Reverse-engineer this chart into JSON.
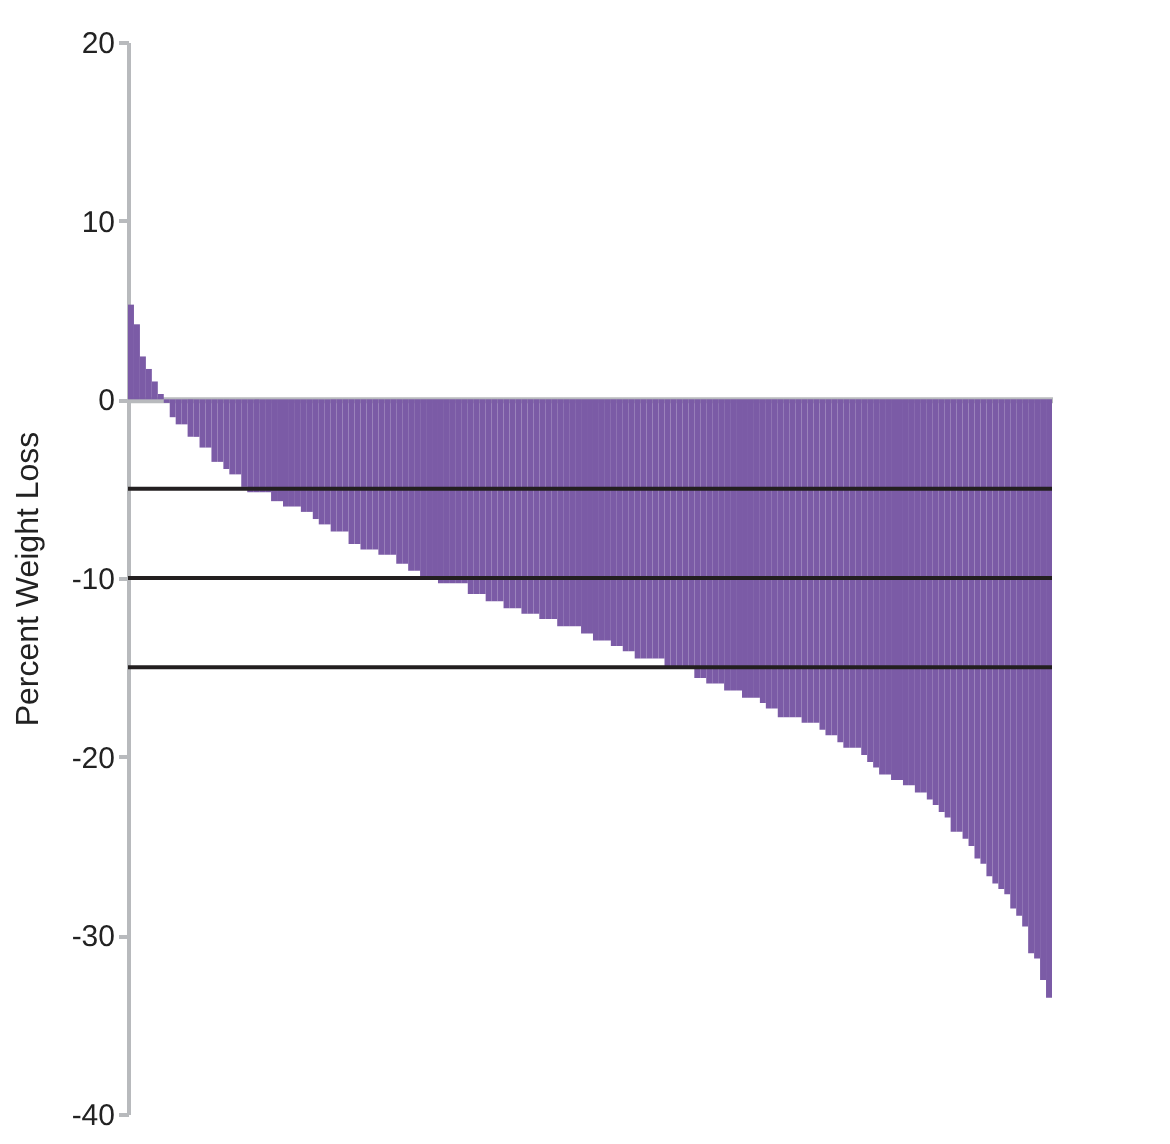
{
  "chart_data": {
    "type": "bar",
    "ylabel": "Percent Weight Loss",
    "categories": [
      null,
      null,
      null,
      null,
      null,
      null,
      null,
      null,
      null,
      null,
      null,
      null,
      null,
      null,
      null,
      null,
      null,
      null,
      null,
      null,
      null,
      null,
      null,
      null,
      null,
      null,
      null,
      null,
      null,
      null,
      null,
      null,
      null,
      null,
      null,
      null,
      null,
      null,
      null,
      null,
      null,
      null,
      null,
      null,
      null,
      null,
      null,
      null,
      null,
      null,
      null,
      null,
      null,
      null,
      null,
      null,
      null,
      null,
      null,
      null,
      null,
      null,
      null,
      null,
      null,
      null,
      null,
      null,
      null,
      null,
      null,
      null,
      null,
      null,
      null,
      null,
      null,
      null,
      null,
      null,
      null,
      null,
      null,
      null,
      null,
      null,
      null,
      null,
      null,
      null,
      null,
      null,
      null,
      null,
      null,
      null,
      null,
      null,
      null,
      null,
      null,
      null,
      null,
      null,
      null,
      null,
      null,
      null,
      null,
      null,
      null,
      null,
      null,
      null,
      null,
      null,
      null,
      null,
      null,
      null,
      null,
      null,
      null,
      null,
      null,
      null,
      null,
      null,
      null,
      null,
      null,
      null,
      null,
      null,
      null,
      null,
      null,
      null,
      null,
      null,
      null,
      null,
      null,
      null,
      null,
      null,
      null,
      null,
      null,
      null,
      null,
      null,
      null,
      null,
      null
    ],
    "values": [
      5.3,
      4.2,
      2.4,
      1.7,
      1.0,
      0.3,
      -0.2,
      -1.0,
      -1.4,
      -1.4,
      -2.1,
      -2.1,
      -2.7,
      -2.7,
      -3.5,
      -3.5,
      -3.9,
      -4.2,
      -4.2,
      -4.9,
      -5.2,
      -5.2,
      -5.2,
      -5.2,
      -5.7,
      -5.7,
      -6.0,
      -6.0,
      -6.0,
      -6.3,
      -6.3,
      -6.7,
      -7.0,
      -7.0,
      -7.4,
      -7.4,
      -7.4,
      -8.1,
      -8.1,
      -8.4,
      -8.4,
      -8.4,
      -8.7,
      -8.7,
      -8.7,
      -9.2,
      -9.2,
      -9.6,
      -9.6,
      -9.9,
      -9.9,
      -9.9,
      -10.3,
      -10.3,
      -10.3,
      -10.3,
      -10.3,
      -10.9,
      -10.9,
      -10.9,
      -11.3,
      -11.3,
      -11.3,
      -11.7,
      -11.7,
      -11.7,
      -12.0,
      -12.0,
      -12.0,
      -12.3,
      -12.3,
      -12.3,
      -12.7,
      -12.7,
      -12.7,
      -12.7,
      -13.1,
      -13.1,
      -13.5,
      -13.5,
      -13.5,
      -13.8,
      -13.8,
      -14.1,
      -14.1,
      -14.5,
      -14.5,
      -14.5,
      -14.5,
      -14.5,
      -15.0,
      -15.0,
      -15.0,
      -15.0,
      -15.0,
      -15.6,
      -15.6,
      -15.9,
      -15.9,
      -15.9,
      -16.3,
      -16.3,
      -16.3,
      -16.7,
      -16.7,
      -16.7,
      -17.0,
      -17.3,
      -17.3,
      -17.8,
      -17.8,
      -17.8,
      -17.8,
      -18.1,
      -18.1,
      -18.1,
      -18.5,
      -18.8,
      -18.8,
      -19.2,
      -19.5,
      -19.5,
      -19.5,
      -19.9,
      -20.3,
      -20.6,
      -21.0,
      -21.0,
      -21.3,
      -21.3,
      -21.6,
      -21.6,
      -22.0,
      -22.0,
      -22.4,
      -22.7,
      -23.1,
      -23.4,
      -24.2,
      -24.2,
      -24.6,
      -25.0,
      -25.7,
      -26.0,
      -26.7,
      -27.1,
      -27.4,
      -27.7,
      -28.5,
      -28.9,
      -29.5,
      -31.0,
      -31.3,
      -32.5,
      -33.5
    ],
    "color": "#7b5ba6",
    "ylim": [
      -40,
      20
    ],
    "yticks": [
      -40,
      -30,
      -20,
      -10,
      0,
      10,
      20
    ],
    "ref_lines": [
      {
        "axis": "y",
        "value": -5,
        "color": "#231f20"
      },
      {
        "axis": "y",
        "value": -10,
        "color": "#231f20"
      },
      {
        "axis": "y",
        "value": -15,
        "color": "#231f20"
      }
    ],
    "tick_labels": "y",
    "grid": false
  }
}
